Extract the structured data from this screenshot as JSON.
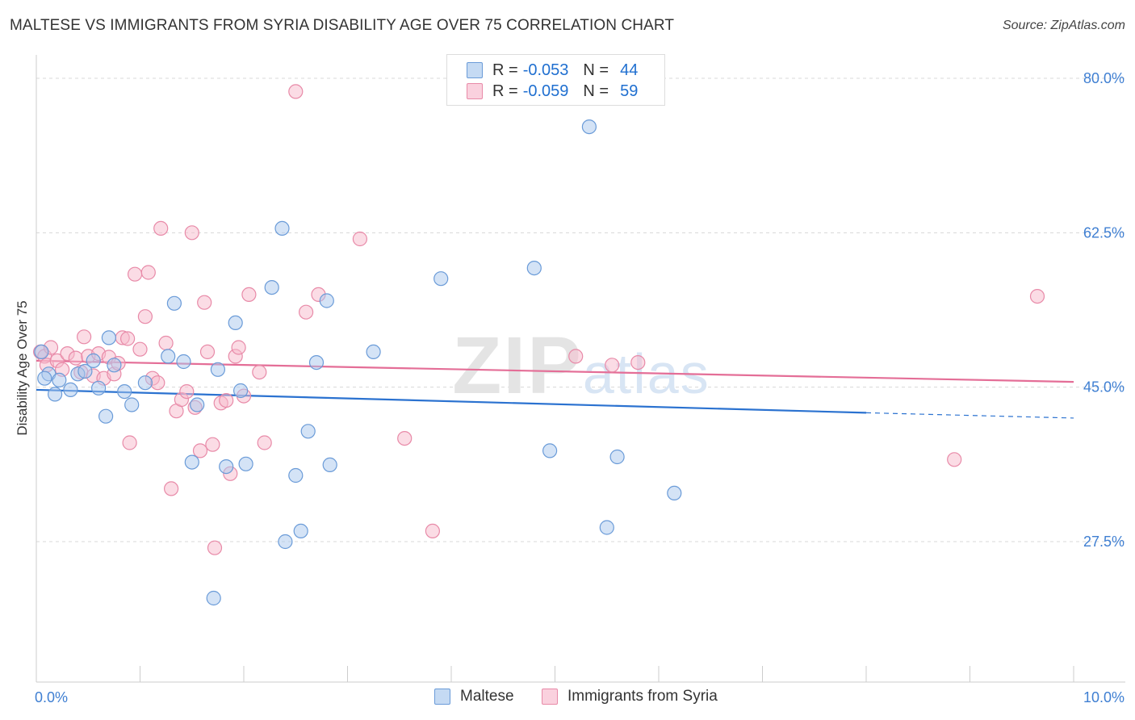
{
  "title": "MALTESE VS IMMIGRANTS FROM SYRIA DISABILITY AGE OVER 75 CORRELATION CHART",
  "source": "Source: ZipAtlas.com",
  "watermark": "ZIPatlas",
  "legend_top": {
    "rows": [
      {
        "r_label": "R =",
        "r_value": "-0.053",
        "n_label": "N =",
        "n_value": "44"
      },
      {
        "r_label": "R =",
        "r_value": "-0.059",
        "n_label": "N =",
        "n_value": "59"
      }
    ]
  },
  "legend_bottom": [
    "Maltese",
    "Immigrants from Syria"
  ],
  "colors": {
    "maltese_fill": "#a9c8ee",
    "maltese_stroke": "#6a9bd8",
    "maltese_line": "#2b72d0",
    "syria_fill": "#f7b9cc",
    "syria_stroke": "#e88aa8",
    "syria_line": "#e46e97",
    "tick_label": "#3f7fd2"
  },
  "chart_data": {
    "type": "scatter",
    "title": "MALTESE VS IMMIGRANTS FROM SYRIA DISABILITY AGE OVER 75 CORRELATION CHART",
    "xlabel": "",
    "ylabel": "Disability Age Over 75",
    "xlim": [
      0,
      10
    ],
    "ylim": [
      10,
      82
    ],
    "x_tick_labels": [
      "0.0%",
      "10.0%"
    ],
    "y_ticks": [
      27.5,
      45.0,
      62.5,
      80.0
    ],
    "y_tick_labels": [
      "27.5%",
      "45.0%",
      "62.5%",
      "80.0%"
    ],
    "grid": "horizontal dashed",
    "legend_position": "top-center",
    "series": [
      {
        "name": "Maltese",
        "R": -0.053,
        "N": 44,
        "trend": {
          "x": [
            0,
            8.0
          ],
          "y": [
            44.7,
            42.1
          ],
          "dashed_to_x": 10,
          "dashed_to_y": 41.5
        },
        "points": [
          [
            0.05,
            49.0
          ],
          [
            0.12,
            46.5
          ],
          [
            0.18,
            44.2
          ],
          [
            0.22,
            45.8
          ],
          [
            0.33,
            44.7
          ],
          [
            0.4,
            46.5
          ],
          [
            0.47,
            46.8
          ],
          [
            0.55,
            48.0
          ],
          [
            0.6,
            44.9
          ],
          [
            0.67,
            41.7
          ],
          [
            0.7,
            50.6
          ],
          [
            0.75,
            47.5
          ],
          [
            0.85,
            44.5
          ],
          [
            0.92,
            43.0
          ],
          [
            1.05,
            45.5
          ],
          [
            1.27,
            48.5
          ],
          [
            1.33,
            54.5
          ],
          [
            1.42,
            47.9
          ],
          [
            1.5,
            36.5
          ],
          [
            1.55,
            43.0
          ],
          [
            1.71,
            21.1
          ],
          [
            1.75,
            47.0
          ],
          [
            1.83,
            36.0
          ],
          [
            1.92,
            52.3
          ],
          [
            1.97,
            44.6
          ],
          [
            2.02,
            36.3
          ],
          [
            2.27,
            56.3
          ],
          [
            2.37,
            63.0
          ],
          [
            2.4,
            27.5
          ],
          [
            2.5,
            35.0
          ],
          [
            2.55,
            28.7
          ],
          [
            2.62,
            40.0
          ],
          [
            2.7,
            47.8
          ],
          [
            2.8,
            54.8
          ],
          [
            2.83,
            36.2
          ],
          [
            3.25,
            49.0
          ],
          [
            3.9,
            57.3
          ],
          [
            4.8,
            58.5
          ],
          [
            4.95,
            37.8
          ],
          [
            5.33,
            74.5
          ],
          [
            5.5,
            29.1
          ],
          [
            5.6,
            37.1
          ],
          [
            6.15,
            33.0
          ],
          [
            0.08,
            46.0
          ]
        ]
      },
      {
        "name": "Immigrants from Syria",
        "R": -0.059,
        "N": 59,
        "trend": {
          "x": [
            0,
            10
          ],
          "y": [
            48.0,
            45.6
          ]
        },
        "points": [
          [
            0.04,
            49.0
          ],
          [
            0.08,
            48.5
          ],
          [
            0.1,
            47.5
          ],
          [
            0.14,
            49.5
          ],
          [
            0.2,
            48.0
          ],
          [
            0.25,
            47.0
          ],
          [
            0.3,
            48.8
          ],
          [
            0.38,
            48.3
          ],
          [
            0.43,
            46.7
          ],
          [
            0.46,
            50.7
          ],
          [
            0.5,
            48.5
          ],
          [
            0.55,
            46.3
          ],
          [
            0.6,
            48.8
          ],
          [
            0.65,
            46.0
          ],
          [
            0.7,
            48.4
          ],
          [
            0.75,
            46.5
          ],
          [
            0.79,
            47.7
          ],
          [
            0.83,
            50.6
          ],
          [
            0.88,
            50.5
          ],
          [
            0.9,
            38.7
          ],
          [
            0.95,
            57.8
          ],
          [
            1.0,
            49.3
          ],
          [
            1.05,
            53.0
          ],
          [
            1.08,
            58.0
          ],
          [
            1.12,
            46.0
          ],
          [
            1.17,
            45.5
          ],
          [
            1.2,
            63.0
          ],
          [
            1.25,
            50.0
          ],
          [
            1.3,
            33.5
          ],
          [
            1.35,
            42.3
          ],
          [
            1.4,
            43.6
          ],
          [
            1.45,
            44.5
          ],
          [
            1.5,
            62.5
          ],
          [
            1.53,
            42.7
          ],
          [
            1.58,
            37.8
          ],
          [
            1.62,
            54.6
          ],
          [
            1.65,
            49.0
          ],
          [
            1.7,
            38.5
          ],
          [
            1.72,
            26.8
          ],
          [
            1.78,
            43.2
          ],
          [
            1.83,
            43.5
          ],
          [
            1.87,
            35.2
          ],
          [
            1.92,
            48.5
          ],
          [
            1.95,
            49.5
          ],
          [
            2.05,
            55.5
          ],
          [
            2.15,
            46.7
          ],
          [
            2.2,
            38.7
          ],
          [
            2.5,
            78.5
          ],
          [
            2.6,
            53.5
          ],
          [
            2.72,
            55.5
          ],
          [
            3.12,
            61.8
          ],
          [
            3.55,
            39.2
          ],
          [
            3.82,
            28.7
          ],
          [
            5.2,
            48.5
          ],
          [
            5.55,
            47.5
          ],
          [
            5.8,
            47.8
          ],
          [
            8.85,
            36.8
          ],
          [
            9.65,
            55.3
          ],
          [
            2.0,
            44.0
          ]
        ]
      }
    ]
  }
}
